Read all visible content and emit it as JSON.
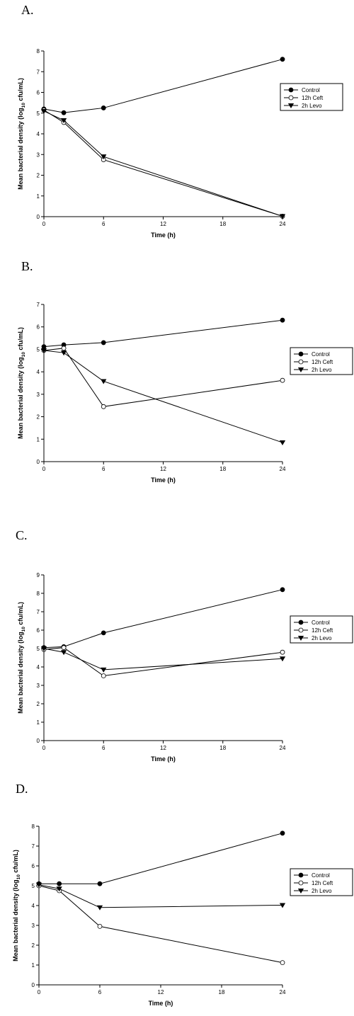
{
  "chart_data": [
    {
      "type": "line",
      "panel_label": "A.",
      "xlabel": "Time (h)",
      "ylabel_main": "Mean bacterial density (log",
      "ylabel_sub": "10",
      "ylabel_end": " cfu/mL)",
      "xlim": [
        0,
        24
      ],
      "ylim": [
        0,
        8
      ],
      "xticks": [
        "0",
        "6",
        "12",
        "18",
        "24"
      ],
      "yticks": [
        "0",
        "1",
        "2",
        "3",
        "4",
        "5",
        "6",
        "7",
        "8"
      ],
      "grid": false,
      "legend_position": "right",
      "x": [
        0,
        2,
        6,
        24
      ],
      "series": [
        {
          "name": "Control",
          "marker": "filled-circle",
          "values": [
            5.2,
            5.02,
            5.25,
            7.6
          ]
        },
        {
          "name": "12h Ceft",
          "marker": "open-circle",
          "values": [
            5.15,
            4.55,
            2.75,
            0.02
          ]
        },
        {
          "name": "2h Levo",
          "marker": "filled-triangle-down",
          "values": [
            5.1,
            4.65,
            2.9,
            0.02
          ]
        }
      ]
    },
    {
      "type": "line",
      "panel_label": "B.",
      "xlabel": "Time (h)",
      "ylabel_main": "Mean bacterial density (log",
      "ylabel_sub": "10",
      "ylabel_end": " cfu/mL)",
      "xlim": [
        0,
        24
      ],
      "ylim": [
        0,
        7
      ],
      "xticks": [
        "0",
        "6",
        "12",
        "18",
        "24"
      ],
      "yticks": [
        "0",
        "1",
        "2",
        "3",
        "4",
        "5",
        "6",
        "7"
      ],
      "grid": false,
      "legend_position": "right",
      "x": [
        0,
        2,
        6,
        24
      ],
      "series": [
        {
          "name": "Control",
          "marker": "filled-circle",
          "values": [
            5.12,
            5.2,
            5.3,
            6.3
          ]
        },
        {
          "name": "12h Ceft",
          "marker": "open-circle",
          "values": [
            4.95,
            5.05,
            2.45,
            3.62
          ]
        },
        {
          "name": "2h Levo",
          "marker": "filled-triangle-down",
          "values": [
            4.95,
            4.85,
            3.58,
            0.85
          ]
        }
      ]
    },
    {
      "type": "line",
      "panel_label": "C.",
      "xlabel": "Time (h)",
      "ylabel_main": "Mean bacterial density (log",
      "ylabel_sub": "10",
      "ylabel_end": " cfu/mL)",
      "xlim": [
        0,
        24
      ],
      "ylim": [
        0,
        9
      ],
      "xticks": [
        "0",
        "6",
        "12",
        "18",
        "24"
      ],
      "yticks": [
        "0",
        "1",
        "2",
        "3",
        "4",
        "5",
        "6",
        "7",
        "8",
        "9"
      ],
      "grid": false,
      "legend_position": "right",
      "x": [
        0,
        2,
        6,
        24
      ],
      "series": [
        {
          "name": "Control",
          "marker": "filled-circle",
          "values": [
            5.05,
            5.1,
            5.85,
            8.2
          ]
        },
        {
          "name": "12h Ceft",
          "marker": "open-circle",
          "values": [
            4.95,
            5.05,
            3.52,
            4.8
          ]
        },
        {
          "name": "2h Levo",
          "marker": "filled-triangle-down",
          "values": [
            5.0,
            4.8,
            3.85,
            4.45
          ]
        }
      ]
    },
    {
      "type": "line",
      "panel_label": "D.",
      "xlabel": "Time (h)",
      "ylabel_main": "Mean bacterial density (log",
      "ylabel_sub": "10",
      "ylabel_end": " cfu/mL)",
      "xlim": [
        0,
        24
      ],
      "ylim": [
        0,
        8
      ],
      "xticks": [
        "0",
        "6",
        "12",
        "18",
        "24"
      ],
      "yticks": [
        "0",
        "1",
        "2",
        "3",
        "4",
        "5",
        "6",
        "7",
        "8"
      ],
      "grid": false,
      "legend_position": "right",
      "x": [
        0,
        2,
        6,
        24
      ],
      "series": [
        {
          "name": "Control",
          "marker": "filled-circle",
          "values": [
            5.1,
            5.1,
            5.1,
            7.65
          ]
        },
        {
          "name": "12h Ceft",
          "marker": "open-circle",
          "values": [
            5.0,
            4.75,
            2.95,
            1.12
          ]
        },
        {
          "name": "2h Levo",
          "marker": "filled-triangle-down",
          "values": [
            5.05,
            4.85,
            3.9,
            4.02
          ]
        }
      ]
    }
  ]
}
